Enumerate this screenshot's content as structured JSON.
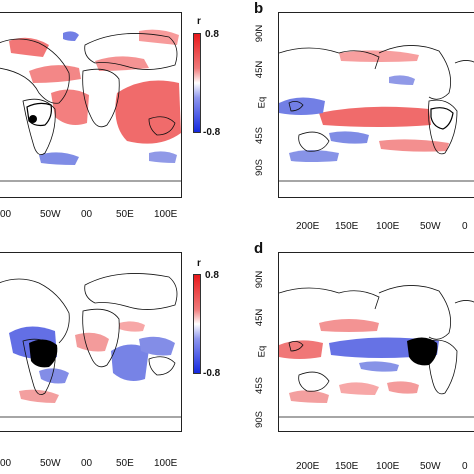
{
  "figure": {
    "panel_letters": [
      "b",
      "d"
    ],
    "colorbar": {
      "label": "r",
      "max_label": "0.8",
      "min_label": "-0.8",
      "colors": {
        "high": "#e8191b",
        "mid": "#ffffff",
        "low": "#1428e0"
      }
    },
    "left_x_ticks": [
      "00",
      "50W",
      "00",
      "50E",
      "100E"
    ],
    "right_x_ticks": [
      "200E",
      "150E",
      "100E",
      "50W",
      "0"
    ],
    "y_ticks": [
      "90N",
      "45N",
      "Eq",
      "45S",
      "90S"
    ]
  }
}
